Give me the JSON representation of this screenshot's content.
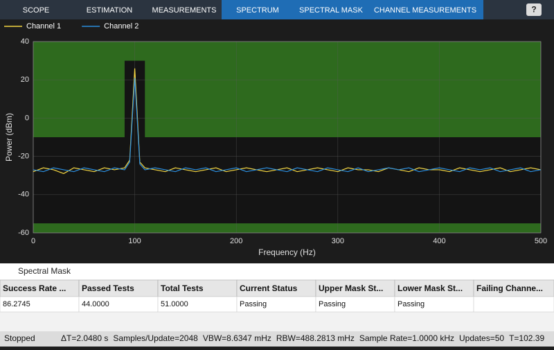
{
  "toolbar": {
    "tabs": [
      "SCOPE",
      "ESTIMATION",
      "MEASUREMENTS",
      "SPECTRUM",
      "SPECTRAL MASK",
      "CHANNEL MEASUREMENTS"
    ],
    "help": "?"
  },
  "chart_data": {
    "type": "line",
    "ylabel": "Power (dBm)",
    "xlabel": "Frequency (Hz)",
    "xlim": [
      0,
      500
    ],
    "ylim": [
      -60,
      40
    ],
    "xticks": [
      0,
      100,
      200,
      300,
      400,
      500
    ],
    "yticks": [
      -60,
      -40,
      -20,
      0,
      20,
      40
    ],
    "grid": true,
    "legend": "top-left",
    "x": [
      0,
      10,
      20,
      30,
      40,
      50,
      60,
      70,
      80,
      90,
      95,
      100,
      105,
      110,
      120,
      130,
      140,
      150,
      160,
      170,
      180,
      190,
      200,
      210,
      220,
      230,
      240,
      250,
      260,
      270,
      280,
      290,
      300,
      310,
      320,
      330,
      340,
      350,
      360,
      370,
      380,
      390,
      400,
      410,
      420,
      430,
      440,
      450,
      460,
      470,
      480,
      490,
      500
    ],
    "series": [
      {
        "name": "Channel 1",
        "color": "#f5d742",
        "values": [
          -28,
          -26,
          -27,
          -29,
          -26,
          -27,
          -28,
          -26,
          -27,
          -26,
          -22,
          26,
          -23,
          -26,
          -27,
          -28,
          -26,
          -27,
          -28,
          -27,
          -26,
          -28,
          -27,
          -26,
          -27,
          -28,
          -27,
          -26,
          -28,
          -27,
          -26,
          -27,
          -28,
          -26,
          -27,
          -27,
          -28,
          -26,
          -27,
          -28,
          -26,
          -27,
          -27,
          -28,
          -26,
          -27,
          -28,
          -27,
          -26,
          -28,
          -27,
          -26,
          -27
        ]
      },
      {
        "name": "Channel 2",
        "color": "#2b8fe0",
        "values": [
          -27,
          -28,
          -26,
          -27,
          -28,
          -26,
          -27,
          -28,
          -26,
          -27,
          -23,
          21,
          -24,
          -27,
          -26,
          -27,
          -28,
          -26,
          -27,
          -26,
          -28,
          -27,
          -26,
          -28,
          -27,
          -26,
          -27,
          -28,
          -26,
          -27,
          -28,
          -26,
          -27,
          -28,
          -26,
          -28,
          -27,
          -26,
          -27,
          -26,
          -28,
          -27,
          -26,
          -27,
          -28,
          -26,
          -27,
          -26,
          -28,
          -27,
          -26,
          -28,
          -27
        ]
      }
    ],
    "upper_mask": {
      "color": "#2e6a1e",
      "x": [
        0,
        90,
        90,
        110,
        110,
        500
      ],
      "values": [
        -10,
        -10,
        30,
        30,
        -10,
        -10
      ]
    },
    "lower_mask": {
      "color": "#2e6a1e",
      "x": [
        0,
        500
      ],
      "values": [
        -55,
        -55
      ]
    }
  },
  "panel": {
    "title": "Spectral Mask"
  },
  "table": {
    "headers": [
      "Success Rate ...",
      "Passed Tests",
      "Total Tests",
      "Current Status",
      "Upper Mask St...",
      "Lower Mask St...",
      "Failing Channe..."
    ],
    "rows": [
      [
        "86.2745",
        "44.0000",
        "51.0000",
        "Passing",
        "Passing",
        "Passing",
        null
      ]
    ]
  },
  "status": {
    "state": "Stopped",
    "items": [
      "ΔT=2.0480 s",
      "Samples/Update=2048",
      "VBW=8.6347 mHz",
      "RBW=488.2813 mHz",
      "Sample Rate=1.0000 kHz",
      "Updates=50",
      "T=102.39"
    ]
  }
}
